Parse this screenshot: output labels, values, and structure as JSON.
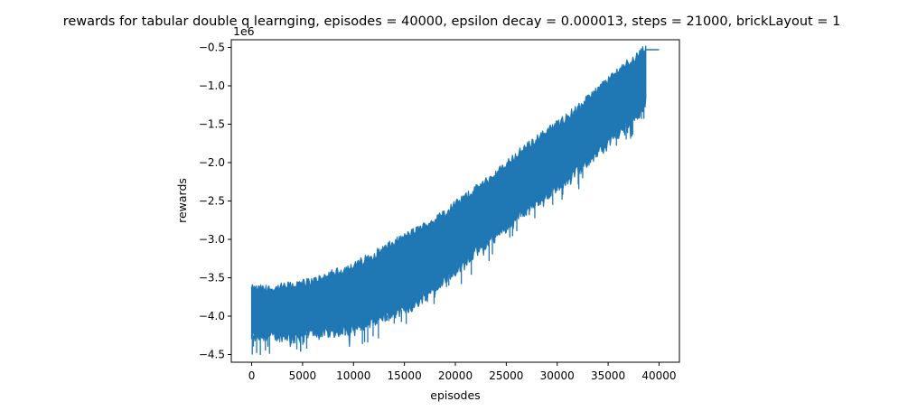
{
  "chart_data": {
    "type": "line",
    "title": "rewards for tabular double q learnging, episodes = 40000, epsilon decay = 0.000013, steps = 21000, brickLayout = 1",
    "xlabel": "episodes",
    "ylabel": "rewards",
    "y_offset_label": "1e6",
    "xlim": [
      -2000,
      42000
    ],
    "ylim": [
      -4.6,
      -0.4
    ],
    "y_scale_factor": 1000000,
    "xticks": [
      0,
      5000,
      10000,
      15000,
      20000,
      25000,
      30000,
      35000,
      40000
    ],
    "xtick_labels": [
      "0",
      "5000",
      "10000",
      "15000",
      "20000",
      "25000",
      "30000",
      "35000",
      "40000"
    ],
    "yticks": [
      -4.5,
      -4.0,
      -3.5,
      -3.0,
      -2.5,
      -2.0,
      -1.5,
      -1.0,
      -0.5
    ],
    "ytick_labels": [
      "−4.5",
      "−4.0",
      "−3.5",
      "−3.0",
      "−2.5",
      "−2.0",
      "−1.5",
      "−1.0",
      "−0.5"
    ],
    "grid": false,
    "series": [
      {
        "color": "#1f77b4",
        "x": [
          0,
          2000,
          4000,
          6000,
          8000,
          10000,
          12000,
          14000,
          16000,
          18000,
          20000,
          22000,
          24000,
          26000,
          28000,
          30000,
          32000,
          34000,
          36000,
          38000,
          38700,
          40000
        ],
        "upper": [
          -3.65,
          -3.65,
          -3.6,
          -3.55,
          -3.45,
          -3.35,
          -3.2,
          -3.05,
          -2.9,
          -2.75,
          -2.55,
          -2.35,
          -2.15,
          -1.9,
          -1.7,
          -1.5,
          -1.3,
          -1.05,
          -0.8,
          -0.6,
          -0.5,
          -0.52
        ],
        "lower": [
          -4.25,
          -4.25,
          -4.25,
          -4.2,
          -4.2,
          -4.15,
          -4.05,
          -3.95,
          -3.85,
          -3.6,
          -3.4,
          -3.15,
          -2.95,
          -2.7,
          -2.5,
          -2.3,
          -2.1,
          -1.85,
          -1.6,
          -1.35,
          -1.2,
          -0.52
        ],
        "end_value": -0.53
      }
    ]
  }
}
